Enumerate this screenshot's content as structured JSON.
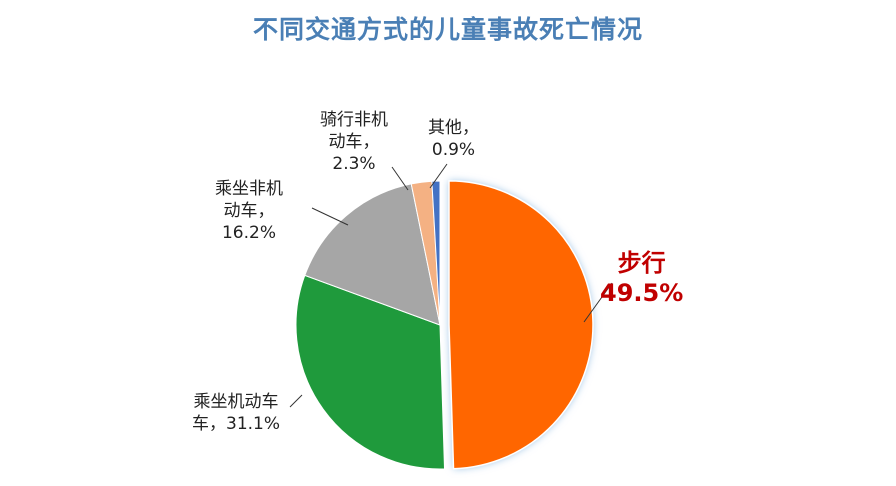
{
  "chart_data": {
    "type": "pie",
    "title": "不同交通方式的儿童事故死亡情况",
    "slices": [
      {
        "name": "步行",
        "value": 49.5,
        "label": "49.5%",
        "color": "#ff6600"
      },
      {
        "name": "乘坐机动车",
        "value": 31.1,
        "label": "31.1%",
        "color": "#1f9a3c"
      },
      {
        "name": "乘坐非机动车",
        "value": 16.2,
        "label": "16.2%",
        "color": "#a6a6a6"
      },
      {
        "name": "骑行非机动车",
        "value": 2.3,
        "label": "2.3%",
        "color": "#f4b183"
      },
      {
        "name": "其他",
        "value": 0.9,
        "label": "0.9%",
        "color": "#4472c4"
      }
    ],
    "labels": {
      "walk_line1": "步行",
      "walk_line2": "49.5%",
      "car_line1": "乘坐机动车",
      "car_line2": "车，31.1%",
      "passenger_line1": "乘坐非机",
      "passenger_line2": "动车，",
      "passenger_line3": "16.2%",
      "ride_line1": "骑行非机",
      "ride_line2": "动车，",
      "ride_line3": "2.3%",
      "other_line1": "其他，",
      "other_line2": "0.9%"
    }
  }
}
